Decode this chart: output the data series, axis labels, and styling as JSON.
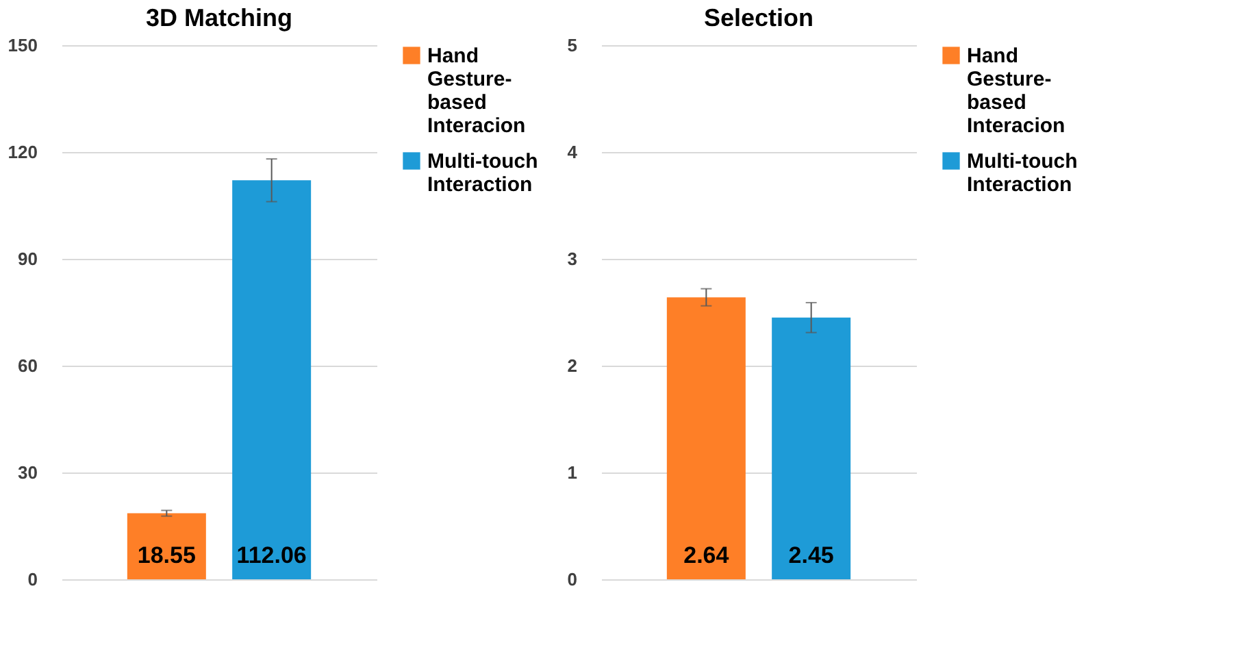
{
  "chart_data": [
    {
      "type": "bar",
      "title": "3D Matching",
      "categories": [
        null
      ],
      "ylim": [
        0,
        150
      ],
      "yticks": [
        0,
        30,
        60,
        90,
        120,
        150
      ],
      "grid": "y",
      "legend": "right",
      "data_labels": true,
      "series": [
        {
          "name": "Hand Gesture-based Interacion",
          "color": "#fe7f27",
          "values": [
            18.55
          ],
          "errors": [
            0.8
          ]
        },
        {
          "name": "Multi-touch Interaction",
          "color": "#1e9bd7",
          "values": [
            112.06
          ],
          "errors": [
            6
          ]
        }
      ]
    },
    {
      "type": "bar",
      "title": "Selection",
      "categories": [
        null
      ],
      "ylim": [
        0,
        5
      ],
      "yticks": [
        0,
        1,
        2,
        3,
        4,
        5
      ],
      "grid": "y",
      "legend": "right",
      "data_labels": true,
      "series": [
        {
          "name": "Hand Gesture-based Interacion",
          "color": "#fe7f27",
          "values": [
            2.64
          ],
          "errors": [
            0.08
          ]
        },
        {
          "name": "Multi-touch Interaction",
          "color": "#1e9bd7",
          "values": [
            2.45
          ],
          "errors": [
            0.14
          ]
        }
      ]
    }
  ]
}
